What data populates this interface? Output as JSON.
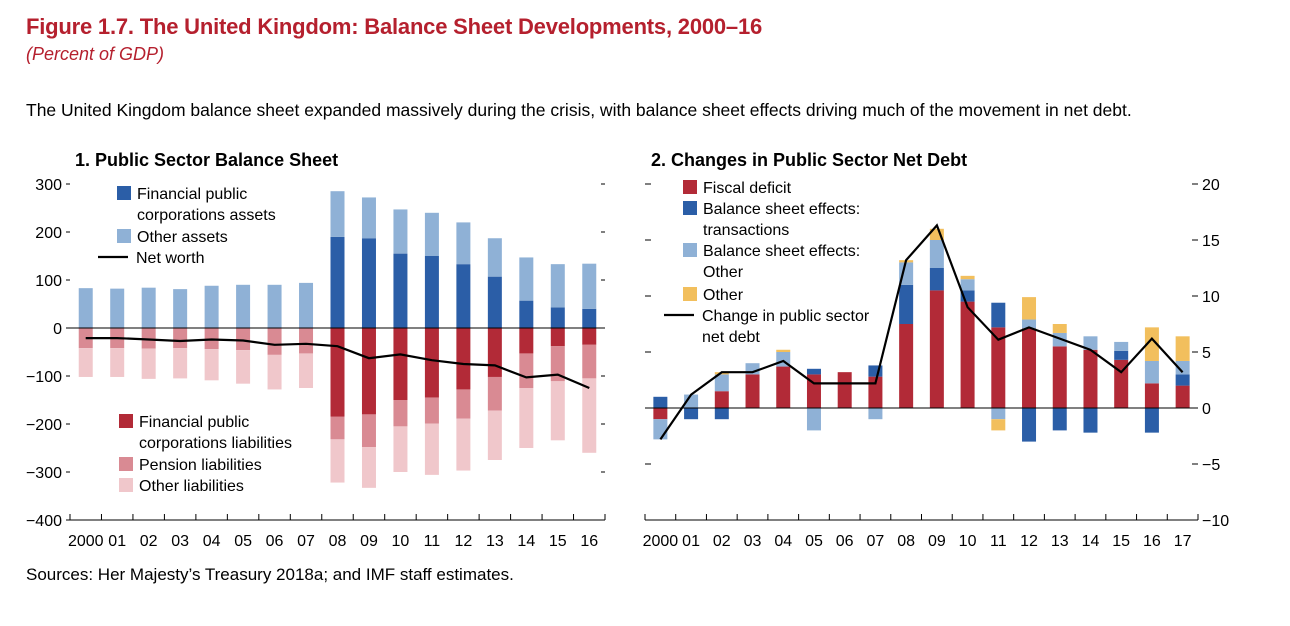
{
  "figure": {
    "title": "Figure 1.7. The United Kingdom: Balance Sheet Developments, 2000–16",
    "subtitle": "(Percent of GDP)",
    "summary": "The United Kingdom balance sheet expanded massively during the crisis, with balance sheet effects driving much of the movement in net debt.",
    "source": "Sources: Her Majesty’s Treasury 2018a; and IMF staff estimates."
  },
  "colors": {
    "dark_blue": "#2b5ea7",
    "light_blue": "#8fb1d6",
    "dark_red": "#b22a37",
    "mid_red": "#d98a93",
    "light_red": "#f0c7cb",
    "gold": "#f2bf5d",
    "line": "#000000"
  },
  "chart_data": [
    {
      "type": "bar",
      "stacked": true,
      "title": "1. Public Sector Balance Sheet",
      "ylim": [
        -400,
        300
      ],
      "yticks": [
        -400,
        -300,
        -200,
        -100,
        0,
        100,
        200,
        300
      ],
      "ytick_labels": [
        "−400",
        "−300",
        "−200",
        "−100",
        "0",
        "100",
        "200",
        "300"
      ],
      "categories": [
        "2000",
        "01",
        "02",
        "03",
        "04",
        "05",
        "06",
        "07",
        "08",
        "09",
        "10",
        "11",
        "12",
        "13",
        "14",
        "15",
        "16"
      ],
      "series": [
        {
          "name": "Financial public corporations assets",
          "legend": [
            "Financial public",
            "corporations assets"
          ],
          "color_key": "dark_blue",
          "kind": "bar",
          "values": [
            0,
            0,
            0,
            0,
            0,
            0,
            0,
            0,
            190,
            187,
            155,
            150,
            133,
            107,
            57,
            43,
            40
          ]
        },
        {
          "name": "Other assets",
          "legend": [
            "Other assets"
          ],
          "color_key": "light_blue",
          "kind": "bar",
          "values": [
            83,
            82,
            84,
            81,
            88,
            90,
            90,
            94,
            95,
            85,
            92,
            90,
            87,
            80,
            90,
            90,
            94
          ]
        },
        {
          "name": "Financial public corporations liabilities",
          "legend": [
            "Financial public",
            "corporations liabilities"
          ],
          "color_key": "dark_red",
          "kind": "bar",
          "values": [
            0,
            0,
            0,
            0,
            0,
            0,
            0,
            0,
            -185,
            -180,
            -150,
            -145,
            -128,
            -102,
            -53,
            -38,
            -35
          ]
        },
        {
          "name": "Pension liabilities",
          "legend": [
            "Pension liabilities"
          ],
          "color_key": "mid_red",
          "kind": "bar",
          "values": [
            -42,
            -42,
            -43,
            -42,
            -44,
            -46,
            -56,
            -53,
            -47,
            -68,
            -55,
            -54,
            -61,
            -70,
            -72,
            -73,
            -70
          ]
        },
        {
          "name": "Other liabilities",
          "legend": [
            "Other liabilities"
          ],
          "color_key": "light_red",
          "kind": "bar",
          "values": [
            -60,
            -60,
            -63,
            -63,
            -65,
            -70,
            -72,
            -72,
            -90,
            -85,
            -95,
            -107,
            -108,
            -103,
            -125,
            -123,
            -155
          ]
        },
        {
          "name": "Net worth",
          "legend": [
            "Net worth"
          ],
          "color_key": "line",
          "kind": "line",
          "values": [
            -21,
            -21,
            -24,
            -27,
            -24,
            -26,
            -35,
            -33,
            -38,
            -63,
            -55,
            -67,
            -75,
            -78,
            -103,
            -97,
            -125
          ]
        }
      ]
    },
    {
      "type": "bar",
      "stacked": true,
      "title": "2. Changes in Public Sector Net Debt",
      "ylim": [
        -10,
        20
      ],
      "yticks": [
        -10,
        -5,
        0,
        5,
        10,
        15,
        20
      ],
      "ytick_labels": [
        "−10",
        "−5",
        "0",
        "5",
        "10",
        "15",
        "20"
      ],
      "categories": [
        "2000",
        "01",
        "02",
        "03",
        "04",
        "05",
        "06",
        "07",
        "08",
        "09",
        "10",
        "11",
        "12",
        "13",
        "14",
        "15",
        "16",
        "17"
      ],
      "series": [
        {
          "name": "Fiscal deficit",
          "legend": [
            "Fiscal deficit"
          ],
          "color_key": "dark_red",
          "kind": "bar",
          "values": [
            -1.0,
            0.0,
            1.5,
            3.0,
            3.7,
            3.0,
            3.2,
            2.8,
            7.5,
            10.5,
            9.5,
            7.2,
            7.1,
            5.5,
            5.2,
            4.3,
            2.2,
            2.0
          ]
        },
        {
          "name": "Balance sheet effects: transactions",
          "legend": [
            "Balance sheet effects:",
            "transactions"
          ],
          "color_key": "dark_blue",
          "kind": "bar",
          "values": [
            1.0,
            -1.0,
            -1.0,
            0.0,
            0.0,
            0.5,
            0.0,
            1.0,
            3.5,
            2.0,
            1.0,
            2.2,
            -3.0,
            -2.0,
            -2.2,
            0.8,
            -2.2,
            1.0
          ]
        },
        {
          "name": "Balance sheet effects: Other",
          "legend": [
            "Balance sheet effects:",
            "Other"
          ],
          "color_key": "light_blue",
          "kind": "bar",
          "values": [
            -1.8,
            1.2,
            1.5,
            1.0,
            1.3,
            -2.0,
            0.0,
            -1.0,
            2.0,
            2.5,
            1.0,
            -1.0,
            0.8,
            1.2,
            1.2,
            0.8,
            2.0,
            1.2
          ]
        },
        {
          "name": "Other",
          "legend": [
            "Other"
          ],
          "color_key": "gold",
          "kind": "bar",
          "values": [
            0.0,
            0.0,
            0.2,
            0.0,
            0.2,
            0.0,
            0.0,
            0.0,
            0.2,
            1.0,
            0.3,
            -1.0,
            2.0,
            0.8,
            0.0,
            0.0,
            3.0,
            2.2
          ]
        },
        {
          "name": "Change in public sector net debt",
          "legend": [
            "Change in public sector",
            "net debt"
          ],
          "color_key": "line",
          "kind": "line",
          "values": [
            -2.8,
            1.2,
            3.2,
            3.2,
            4.2,
            2.2,
            2.2,
            2.2,
            13.2,
            16.3,
            9.0,
            6.1,
            7.2,
            6.2,
            5.2,
            3.2,
            6.2,
            3.2
          ]
        }
      ]
    }
  ]
}
